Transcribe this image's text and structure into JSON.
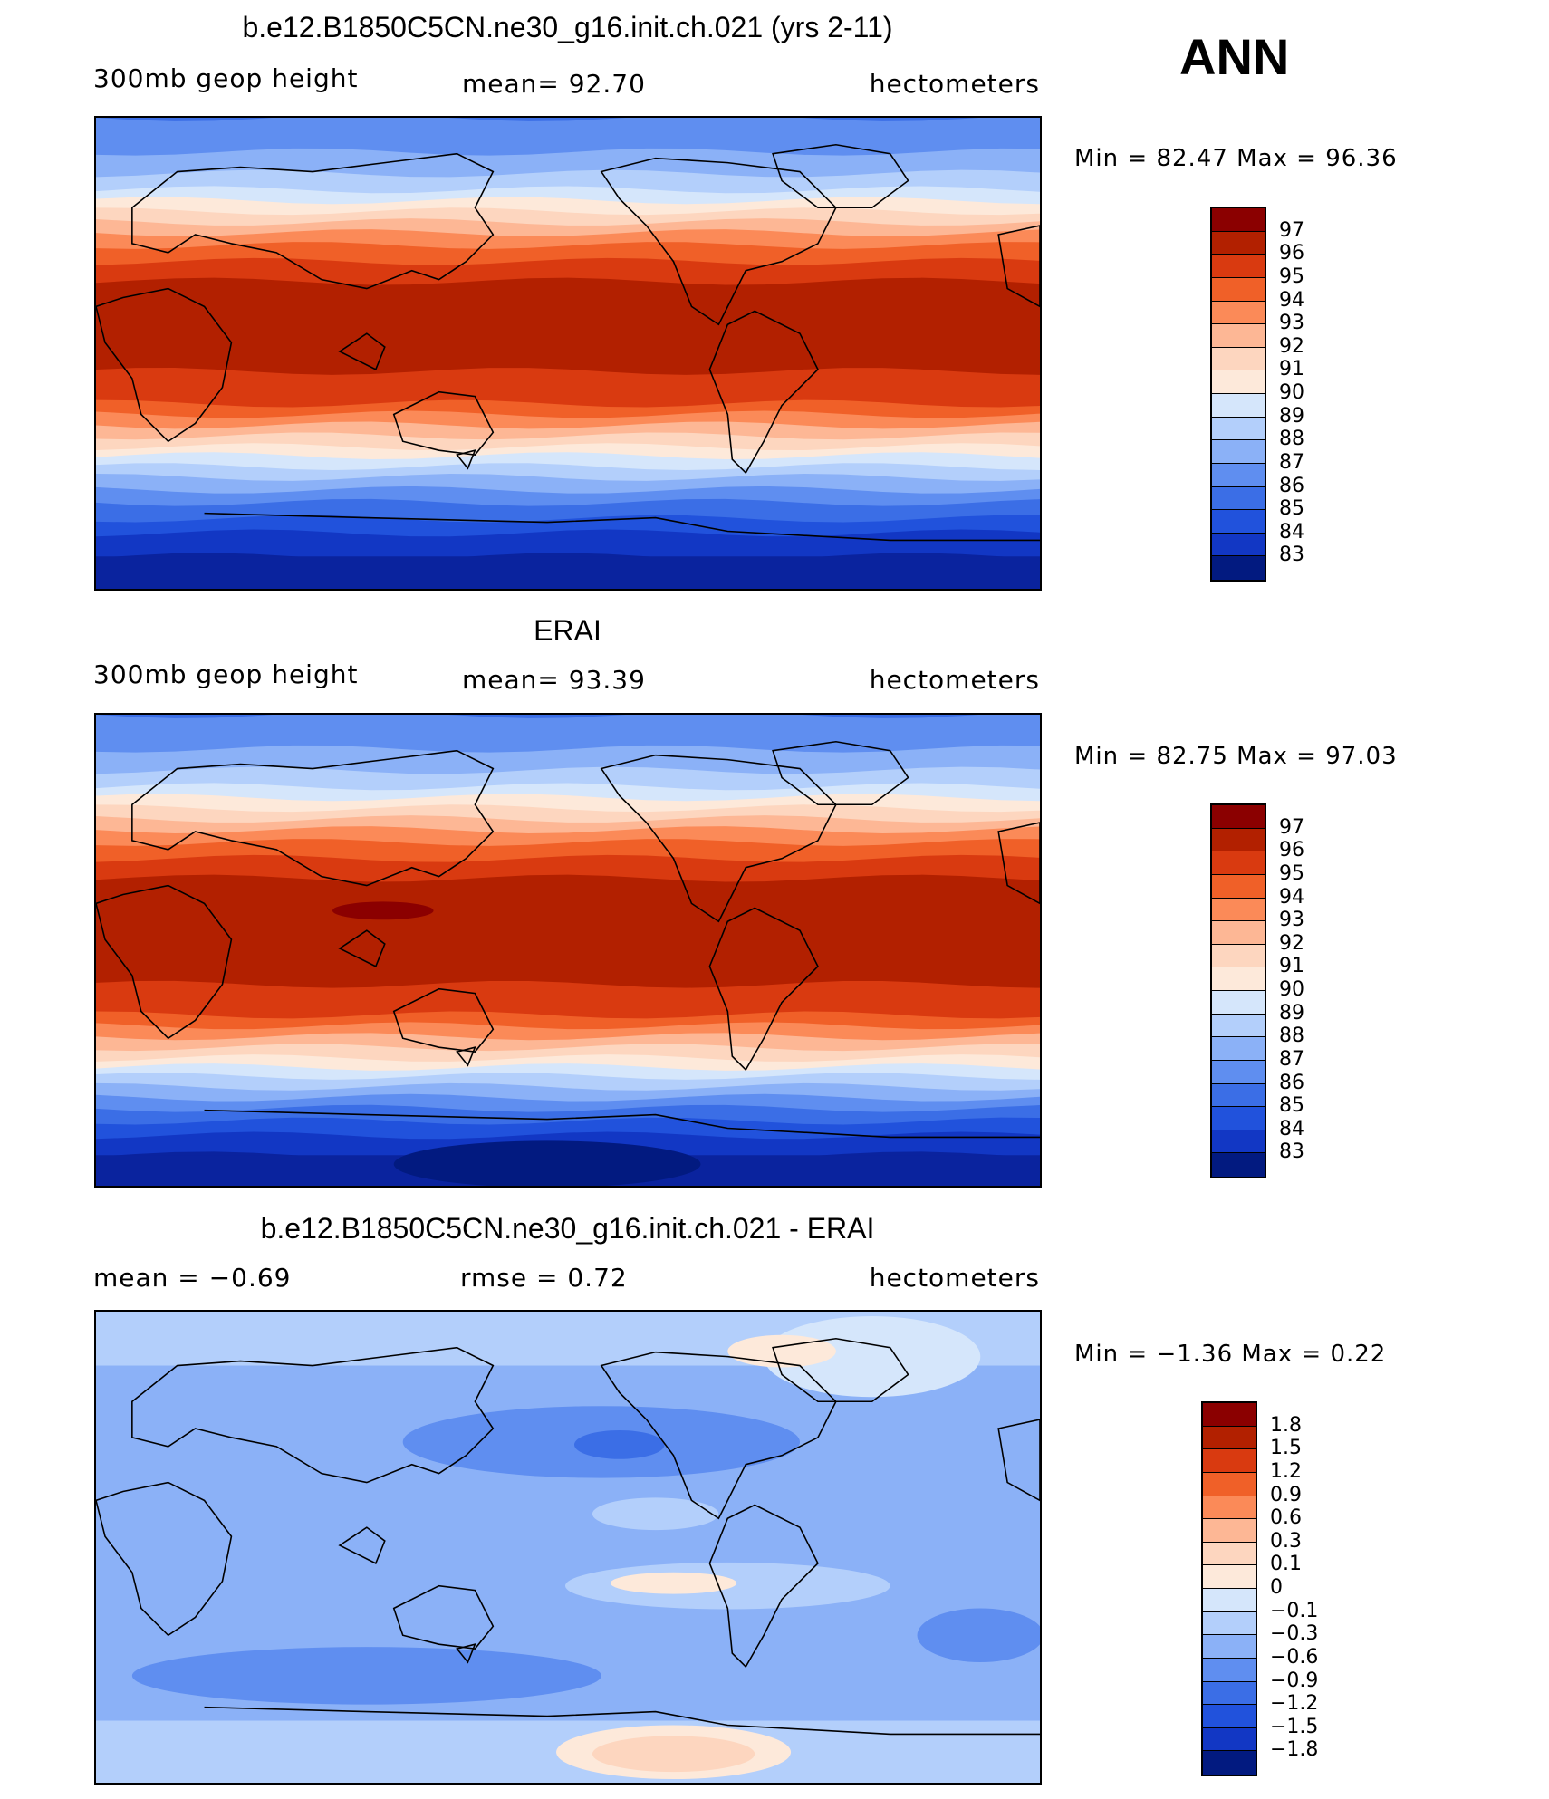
{
  "season_label": "ANN",
  "palette": {
    "c97": "#8b0000",
    "c96": "#b22000",
    "c95": "#d93a10",
    "c94": "#f06028",
    "c93": "#fb8a58",
    "c92": "#fdb795",
    "c91": "#fdd6bf",
    "c90": "#fde9da",
    "c89": "#d5e6fb",
    "c88": "#b3cffb",
    "c87": "#8bb1f7",
    "c86": "#5f8ef0",
    "c85": "#3b6ee6",
    "c84": "#2152dc",
    "c83": "#1237c4",
    "c82": "#0a239e",
    "c81": "#021a80"
  },
  "panels": [
    {
      "title": "b.e12.B1850C5CN.ne30_g16.init.ch.021 (yrs 2-11)",
      "left_text": "300mb  geop  height",
      "center_text": "mean=   92.70",
      "right_text": "hectometers",
      "minmax": "Min  =    82.47  Max  =    96.36",
      "map_type": "model_field",
      "colorbar": {
        "labels": [
          "97",
          "96",
          "95",
          "94",
          "93",
          "92",
          "91",
          "90",
          "89",
          "88",
          "87",
          "86",
          "85",
          "84",
          "83"
        ],
        "colors": [
          "#8b0000",
          "#b22000",
          "#d93a10",
          "#f06028",
          "#fb8a58",
          "#fdb795",
          "#fdd6bf",
          "#fde9da",
          "#d5e6fb",
          "#b3cffb",
          "#8bb1f7",
          "#5f8ef0",
          "#3b6ee6",
          "#2152dc",
          "#1237c4",
          "#021a80"
        ]
      }
    },
    {
      "title": "ERAI",
      "left_text": "300mb  geop  height",
      "center_text": "mean=   93.39",
      "right_text": "hectometers",
      "minmax": "Min  =    82.75  Max  =    97.03",
      "map_type": "obs_field",
      "colorbar": {
        "labels": [
          "97",
          "96",
          "95",
          "94",
          "93",
          "92",
          "91",
          "90",
          "89",
          "88",
          "87",
          "86",
          "85",
          "84",
          "83"
        ],
        "colors": [
          "#8b0000",
          "#b22000",
          "#d93a10",
          "#f06028",
          "#fb8a58",
          "#fdb795",
          "#fdd6bf",
          "#fde9da",
          "#d5e6fb",
          "#b3cffb",
          "#8bb1f7",
          "#5f8ef0",
          "#3b6ee6",
          "#2152dc",
          "#1237c4",
          "#021a80"
        ]
      }
    },
    {
      "title": "b.e12.B1850C5CN.ne30_g16.init.ch.021 - ERAI",
      "left_text": "mean  =    −0.69",
      "center_text": "rmse  =     0.72",
      "right_text": "hectometers",
      "minmax": "Min  =   −1.36  Max  =     0.22",
      "map_type": "difference",
      "colorbar": {
        "labels": [
          "1.8",
          "1.5",
          "1.2",
          "0.9",
          "0.6",
          "0.3",
          "0.1",
          "0",
          "−0.1",
          "−0.3",
          "−0.6",
          "−0.9",
          "−1.2",
          "−1.5",
          "−1.8"
        ],
        "colors": [
          "#8b0000",
          "#b22000",
          "#d93a10",
          "#f06028",
          "#fb8a58",
          "#fdb795",
          "#fdd6bf",
          "#fde9da",
          "#d5e6fb",
          "#b3cffb",
          "#8bb1f7",
          "#5f8ef0",
          "#3b6ee6",
          "#2152dc",
          "#1237c4",
          "#021a80"
        ]
      }
    }
  ]
}
